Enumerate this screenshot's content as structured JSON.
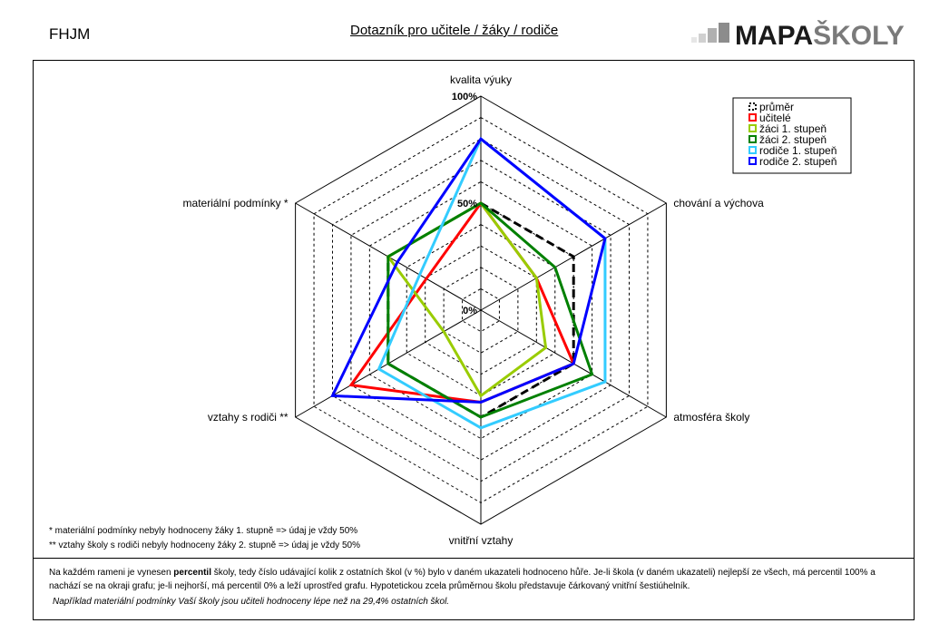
{
  "header": {
    "school_code": "FHJM",
    "title": "Dotazník pro učitele / žáky / rodiče",
    "logo_part1": "MAPA",
    "logo_part2": "ŠKOLY"
  },
  "chart_data": {
    "type": "radar",
    "axes": [
      "kvalita výuky",
      "chování a výchova",
      "atmosféra školy",
      "vnitřní vztahy",
      "vztahy s rodiči **",
      "materiální podmínky *"
    ],
    "scale_labels": [
      "0%",
      "50%",
      "100%"
    ],
    "range": [
      0,
      100
    ],
    "grid_rings": 10,
    "legend_position": "top-right",
    "series": [
      {
        "name": "průměr",
        "color": "#000000",
        "dashed": true,
        "values": [
          50,
          50,
          50,
          50,
          50,
          50
        ]
      },
      {
        "name": "učitelé",
        "color": "#ff0000",
        "dashed": false,
        "values": [
          50,
          30,
          50,
          43,
          70,
          29.4
        ]
      },
      {
        "name": "žáci 1. stupeň",
        "color": "#99cc00",
        "dashed": false,
        "values": [
          50,
          30,
          35,
          40,
          20,
          50
        ]
      },
      {
        "name": "žáci 2. stupeň",
        "color": "#008000",
        "dashed": false,
        "values": [
          50,
          40,
          60,
          50,
          50,
          50
        ]
      },
      {
        "name": "rodiče 1. stupeň",
        "color": "#33ccff",
        "dashed": false,
        "values": [
          80,
          67,
          67,
          55,
          55,
          33
        ]
      },
      {
        "name": "rodiče 2. stupeň",
        "color": "#0000ff",
        "dashed": false,
        "values": [
          80,
          67,
          50,
          43,
          80,
          45
        ]
      }
    ]
  },
  "footnotes": {
    "note1": "* materiální podmínky nebyly hodnoceny žáky 1. stupně => údaj je vždy 50%",
    "note2": "** vztahy školy s rodiči nebyly hodnoceny žáky 2. stupně => údaj je vždy 50%"
  },
  "explanation": {
    "part1": "Na každém rameni je vynesen ",
    "bold": "percentil",
    "part2": " školy, tedy číslo udávající kolik z ostatních škol (v %) bylo v daném ukazateli hodnoceno hůře. Je-li škola (v daném ukazateli) nejlepší ze všech, má percentil 100% a nachází se na okraji grafu; je-li nejhorší, má percentil 0% a leží uprostřed grafu. Hypotetickou zcela průměrnou školu představuje čárkovaný vnitřní šestiúhelník.",
    "example": "Například materiální podmínky Vaší školy jsou učiteli hodnoceny lépe než na 29,4% ostatních škol."
  }
}
